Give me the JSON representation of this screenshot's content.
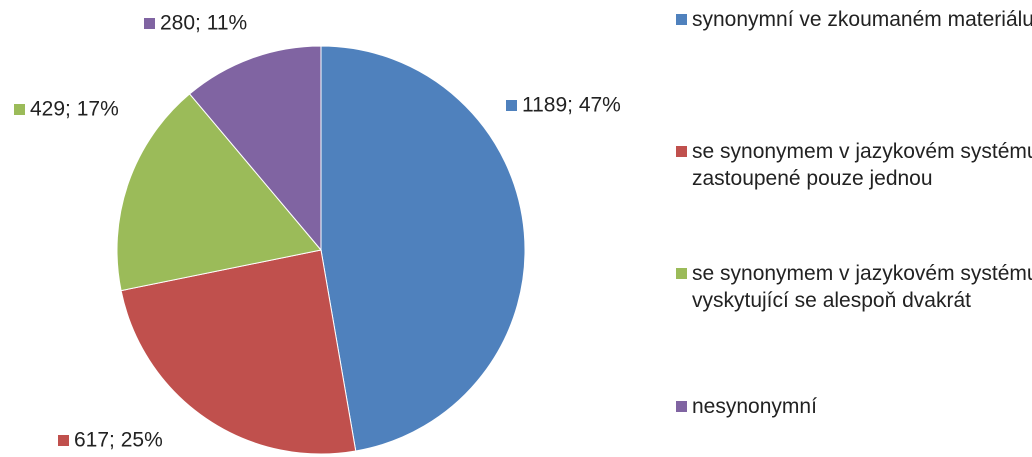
{
  "chart_data": {
    "type": "pie",
    "categories": [
      "synonymní ve zkoumaném materiálu",
      "se synonymem v jazykovém systému zastoupené pouze jednou",
      "se synonymem v jazykovém systému vyskytující se alespoň dvakrát",
      "nesynonymní"
    ],
    "values": [
      1189,
      617,
      429,
      280
    ],
    "value_labels": [
      "1189; 47%",
      "617; 25%",
      "429; 17%",
      "280; 11%"
    ],
    "colors": [
      "#4f81bd",
      "#c0504d",
      "#9bbb59",
      "#8064a2"
    ],
    "legend": "right"
  }
}
